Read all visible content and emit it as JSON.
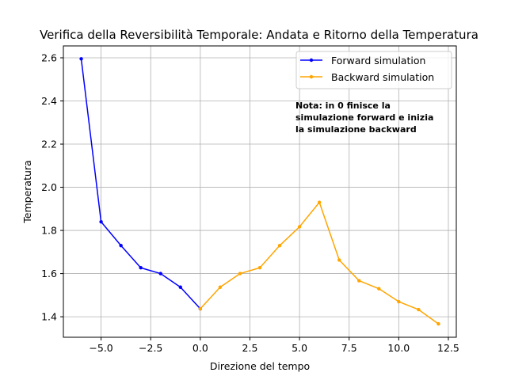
{
  "chart_data": {
    "type": "line",
    "title": "Verifica della Reversibilità Temporale: Andata e Ritorno della Temperatura",
    "xlabel": "Direzione del tempo",
    "ylabel": "Temperatura",
    "xlim": [
      -6.9,
      12.9
    ],
    "ylim": [
      1.305,
      2.655
    ],
    "xticks": [
      -5.0,
      -2.5,
      0.0,
      2.5,
      5.0,
      7.5,
      10.0,
      12.5
    ],
    "xtick_labels": [
      "−5.0",
      "−2.5",
      "0.0",
      "2.5",
      "5.0",
      "7.5",
      "10.0",
      "12.5"
    ],
    "yticks": [
      1.4,
      1.6,
      1.8,
      2.0,
      2.2,
      2.4,
      2.6
    ],
    "ytick_labels": [
      "1.4",
      "1.6",
      "1.8",
      "2.0",
      "2.2",
      "2.4",
      "2.6"
    ],
    "grid": true,
    "legend_position": "top-right",
    "series": [
      {
        "name": "Forward simulation",
        "color": "#0000ff",
        "x": [
          -6,
          -5,
          -4,
          -3,
          -2,
          -1,
          0
        ],
        "y": [
          2.595,
          1.84,
          1.73,
          1.627,
          1.6,
          1.537,
          1.437
        ]
      },
      {
        "name": "Backward simulation",
        "color": "#ffa500",
        "x": [
          0,
          1,
          2,
          3,
          4,
          5,
          6,
          7,
          8,
          9,
          10,
          11,
          12
        ],
        "y": [
          1.437,
          1.537,
          1.6,
          1.627,
          1.73,
          1.817,
          1.93,
          1.663,
          1.567,
          1.53,
          1.47,
          1.433,
          1.367
        ]
      }
    ],
    "annotation": {
      "lines": [
        "Nota: in 0 finisce la",
        "simulazione forward e inizia",
        "la simulazione backward"
      ]
    }
  }
}
